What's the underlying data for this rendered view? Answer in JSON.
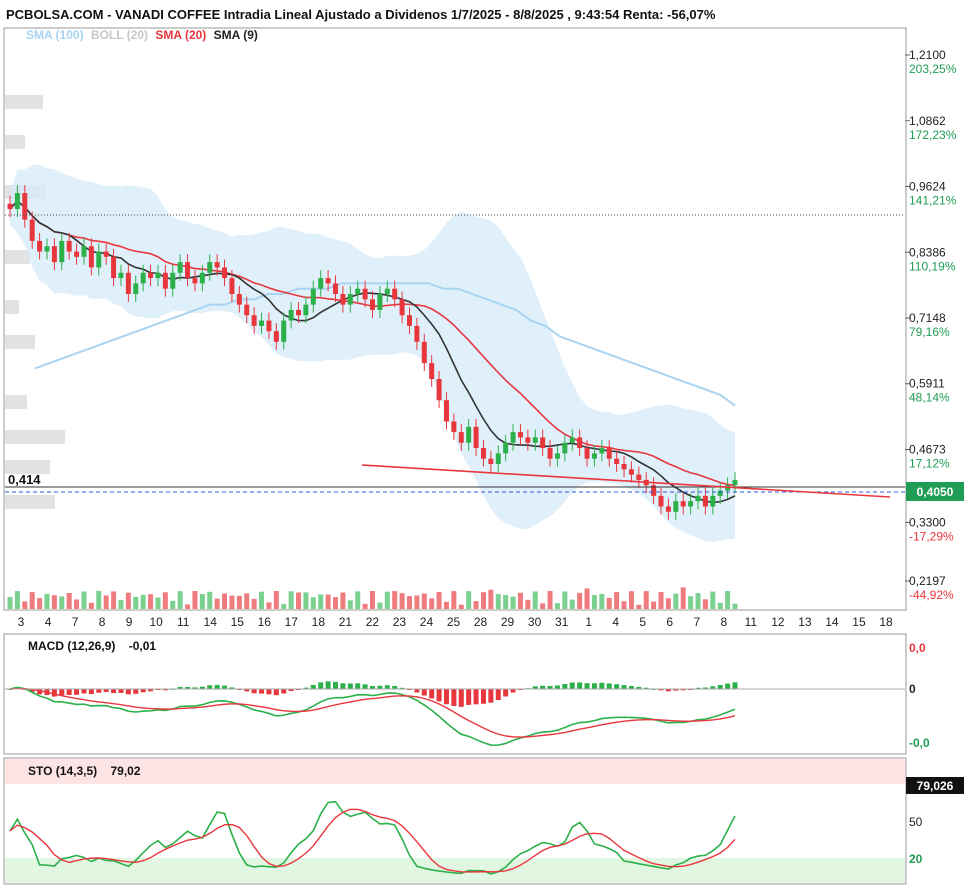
{
  "title": "PCBOLSA.COM - VANADI COFFEE Intradia Lineal Ajustado a Dividenos 1/7/2025 - 8/8/2025 , 9:43:54 Renta: -56,07%",
  "legend": [
    {
      "label": "SMA (100)",
      "color": "#a8d4f2"
    },
    {
      "label": "BOLL (20)",
      "color": "#c8c8c8"
    },
    {
      "label": "SMA (20)",
      "color": "#e8363d"
    },
    {
      "label": "SMA (9)",
      "color": "#222222"
    }
  ],
  "price_axis": [
    {
      "price": "1,2100",
      "pct": "203,25%",
      "pct_color": "#1f9d55"
    },
    {
      "price": "1,0862",
      "pct": "172,23%",
      "pct_color": "#1f9d55"
    },
    {
      "price": "0,9624",
      "pct": "141,21%",
      "pct_color": "#1f9d55"
    },
    {
      "price": "0,8386",
      "pct": "110,19%",
      "pct_color": "#1f9d55"
    },
    {
      "price": "0,7148",
      "pct": "79,16%",
      "pct_color": "#1f9d55"
    },
    {
      "price": "0,5911",
      "pct": "48,14%",
      "pct_color": "#1f9d55"
    },
    {
      "price": "0,4673",
      "pct": "17,12%",
      "pct_color": "#1f9d55"
    },
    {
      "price": "0,3300",
      "pct": "-17,29%",
      "pct_color": "#e8363d"
    },
    {
      "price": "0,2197",
      "pct": "-44,92%",
      "pct_color": "#e8363d"
    }
  ],
  "current_price": "0,4050",
  "ref_level_label": "0,414",
  "x_labels": [
    "3",
    "4",
    "7",
    "8",
    "9",
    "10",
    "11",
    "14",
    "15",
    "16",
    "17",
    "18",
    "21",
    "22",
    "23",
    "24",
    "25",
    "28",
    "29",
    "30",
    "31",
    "1",
    "4",
    "5",
    "6",
    "7",
    "8",
    "11",
    "12",
    "13",
    "14",
    "15",
    "18"
  ],
  "macd": {
    "label": "MACD (12,26,9)",
    "value": "-0,01",
    "axis": [
      "0,0",
      "0",
      "-0,0"
    ]
  },
  "sto": {
    "label": "STO (14,3,5)",
    "value": "79,02",
    "current": "79,026",
    "axis": [
      "50",
      "20"
    ]
  },
  "chart_data": {
    "type": "candlestick",
    "ylim": [
      0.17,
      1.26
    ],
    "closes": [
      0.92,
      0.95,
      0.9,
      0.86,
      0.84,
      0.85,
      0.82,
      0.86,
      0.84,
      0.83,
      0.85,
      0.81,
      0.84,
      0.83,
      0.79,
      0.8,
      0.76,
      0.78,
      0.8,
      0.79,
      0.8,
      0.77,
      0.8,
      0.82,
      0.79,
      0.78,
      0.8,
      0.82,
      0.81,
      0.79,
      0.76,
      0.74,
      0.72,
      0.7,
      0.71,
      0.69,
      0.67,
      0.71,
      0.73,
      0.72,
      0.74,
      0.77,
      0.79,
      0.78,
      0.76,
      0.74,
      0.76,
      0.77,
      0.75,
      0.73,
      0.76,
      0.77,
      0.75,
      0.72,
      0.7,
      0.67,
      0.63,
      0.6,
      0.56,
      0.52,
      0.5,
      0.48,
      0.51,
      0.47,
      0.45,
      0.44,
      0.46,
      0.48,
      0.5,
      0.49,
      0.48,
      0.49,
      0.47,
      0.45,
      0.46,
      0.48,
      0.49,
      0.47,
      0.45,
      0.46,
      0.47,
      0.45,
      0.44,
      0.43,
      0.42,
      0.41,
      0.4,
      0.38,
      0.36,
      0.35,
      0.37,
      0.36,
      0.37,
      0.38,
      0.36,
      0.38,
      0.39,
      0.4,
      0.41
    ],
    "sma100": [
      0.62,
      0.63,
      0.64,
      0.65,
      0.66,
      0.67,
      0.68,
      0.69,
      0.7,
      0.71,
      0.72,
      0.73,
      0.74,
      0.74,
      0.75,
      0.75,
      0.76,
      0.76,
      0.77,
      0.77,
      0.77,
      0.78,
      0.78,
      0.78,
      0.78,
      0.78,
      0.78,
      0.78,
      0.77,
      0.77,
      0.76,
      0.75,
      0.74,
      0.73,
      0.71,
      0.7,
      0.68,
      0.67,
      0.66,
      0.65,
      0.64,
      0.63,
      0.62,
      0.61,
      0.6,
      0.59,
      0.58,
      0.57,
      0.55
    ],
    "current_price": 0.405
  }
}
